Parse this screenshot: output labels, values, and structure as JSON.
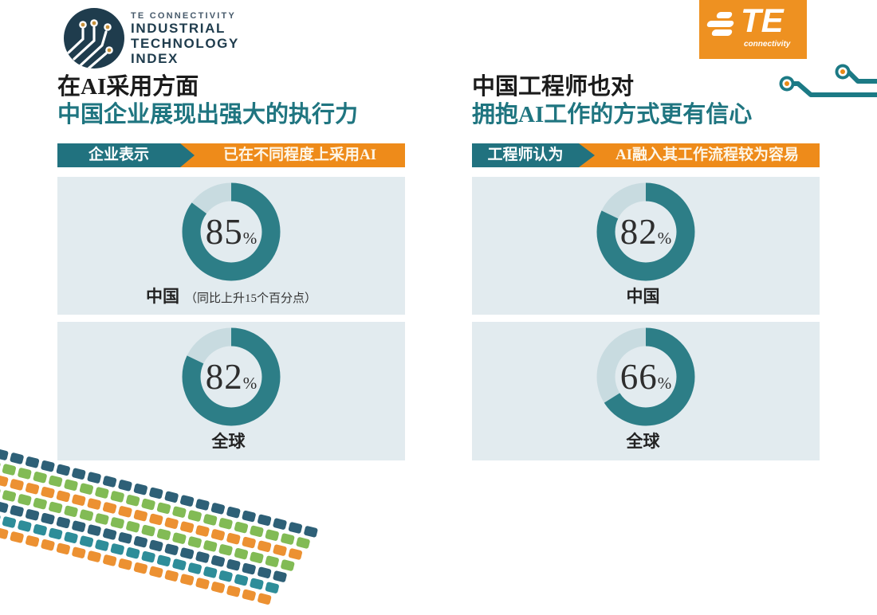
{
  "header": {
    "index_logo": {
      "eyebrow": "TE CONNECTIVITY",
      "line1": "INDUSTRIAL",
      "line2": "TECHNOLOGY",
      "line3": "INDEX"
    },
    "te_logo": {
      "text": "TE",
      "subtext": "connectivity"
    }
  },
  "colors": {
    "teal_text": "#1F7580",
    "ribbon_teal": "#21727F",
    "ribbon_orange": "#EE8B1A",
    "donut_fill": "#2D7E87",
    "donut_track": "#C8DBE0",
    "card_background": "#E2EBEF",
    "logo_navy": "#1F3C4D",
    "te_orange": "#EE9121"
  },
  "chart_data": [
    {
      "type": "pie",
      "title_line1": "在AI采用方面",
      "title_line2": "中国企业展现出强大的执行力",
      "ribbon_tag": "企业表示",
      "ribbon_statement": "已在不同程度上采用AI",
      "legend_position": "none",
      "donuts": [
        {
          "value": 85,
          "unit": "%",
          "label": "中国",
          "note": "（同比上升15个百分点）"
        },
        {
          "value": 82,
          "unit": "%",
          "label": "全球",
          "note": ""
        }
      ]
    },
    {
      "type": "pie",
      "title_line1": "中国工程师也对",
      "title_line2": "拥抱AI工作的方式更有信心",
      "ribbon_tag": "工程师认为",
      "ribbon_statement": "AI融入其工作流程较为容易",
      "legend_position": "none",
      "donuts": [
        {
          "value": 82,
          "unit": "%",
          "label": "中国",
          "note": ""
        },
        {
          "value": 66,
          "unit": "%",
          "label": "全球",
          "note": ""
        }
      ]
    }
  ],
  "decor": {
    "mosaic_rows": [
      "#2E6077",
      "#82BB55",
      "#EC9132",
      "#82BB55",
      "#2E6077",
      "#2E8D99",
      "#EC9132"
    ],
    "tiles_per_row": 22
  }
}
